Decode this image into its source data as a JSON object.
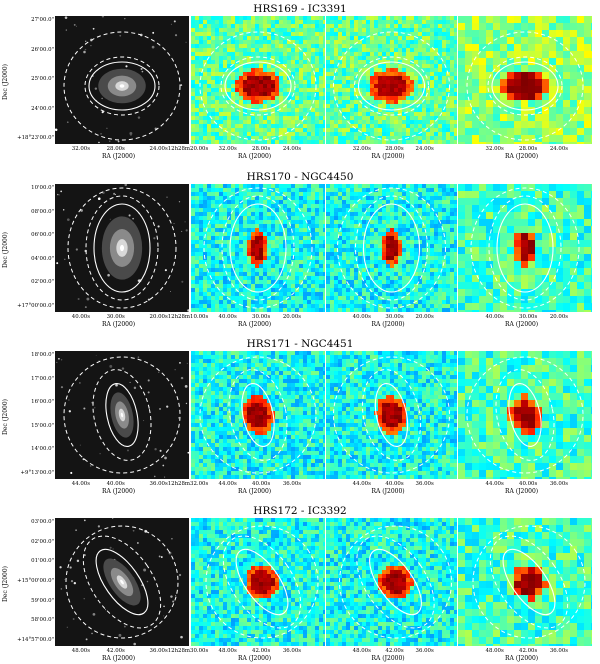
{
  "rows": [
    {
      "title": "HRS169 - IC3391",
      "dec_ticks": [
        "27'00.0\"",
        "26'00.0\"",
        "25'00.0\"",
        "24'00.0\"",
        "+18°23'00.0\""
      ],
      "ra_ticks_optical": [
        "32.00s",
        "28.00s",
        "24.00s12h28m20.00s"
      ],
      "ra_ticks_maps": [
        "32.00s",
        "28.00s",
        "24.00s"
      ],
      "ra_label": "RA (J2000)",
      "dec_label": "Dec (J2000)",
      "maps_shown": 3
    },
    {
      "title": "HRS170 - NGC4450",
      "dec_ticks": [
        "10'00.0\"",
        "08'00.0\"",
        "06'00.0\"",
        "04'00.0\"",
        "02'00.0\"",
        "+17°00'00.0\""
      ],
      "ra_ticks_optical": [
        "40.00s",
        "30.00s",
        "20.00s12h28m10.00s"
      ],
      "ra_ticks_maps": [
        "40.00s",
        "30.00s",
        "20.00s"
      ],
      "ra_label": "RA (J2000)",
      "dec_label": "Dec (J2000)",
      "maps_shown": 3
    },
    {
      "title": "HRS171 - NGC4451",
      "dec_ticks": [
        "18'00.0\"",
        "17'00.0\"",
        "16'00.0\"",
        "15'00.0\"",
        "14'00.0\"",
        "+9°13'00.0\""
      ],
      "ra_ticks_optical": [
        "44.00s",
        "40.00s",
        "36.00s12h28m32.00s"
      ],
      "ra_ticks_maps": [
        "44.00s",
        "40.00s",
        "36.00s"
      ],
      "ra_label": "RA (J2000)",
      "dec_label": "Dec (J2000)",
      "maps_shown": 3
    },
    {
      "title": "HRS172 - IC3392",
      "dec_ticks": [
        "03'00.0\"",
        "02'00.0\"",
        "01'00.0\"",
        "+15°00'00.0\"",
        "59'00.0\"",
        "58'00.0\"",
        "+14°57'00.0\""
      ],
      "ra_ticks_optical": [
        "48.00s",
        "42.00s",
        "36.00s12h28m30.00s"
      ],
      "ra_ticks_maps": [
        "48.00s",
        "42.00s",
        "36.00s"
      ],
      "ra_label": "RA (J2000)",
      "dec_label": "Dec (J2000)",
      "maps_shown": 3
    }
  ]
}
